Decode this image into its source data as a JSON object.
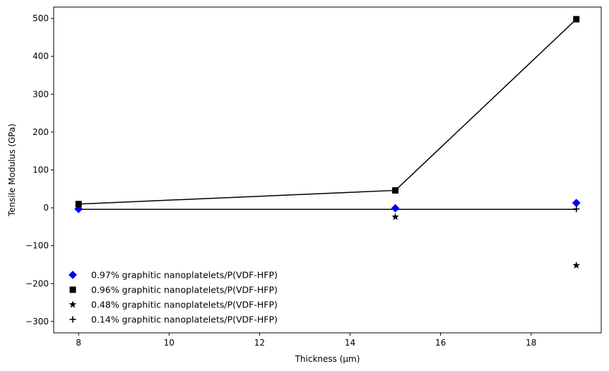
{
  "chart_data": {
    "type": "scatter",
    "xlabel": "Thickness (µm)",
    "ylabel": "Tensile Modulus (GPa)",
    "xlim": [
      7.45,
      19.55
    ],
    "ylim": [
      -330,
      530
    ],
    "xticks": [
      8,
      10,
      12,
      14,
      16,
      18
    ],
    "yticks": [
      -300,
      -200,
      -100,
      0,
      100,
      200,
      300,
      400,
      500
    ],
    "grid": false,
    "legend_position": "lower-left",
    "series": [
      {
        "name": "0.97% graphitic nanoplatelets/P(VDF-HFP)",
        "marker": "diamond",
        "color": "#0000ee",
        "points": [
          [
            8,
            -3
          ],
          [
            15,
            -1
          ],
          [
            19,
            13
          ]
        ]
      },
      {
        "name": "0.96% graphitic nanoplatelets/P(VDF-HFP)",
        "marker": "square",
        "color": "#000000",
        "points": [
          [
            8,
            10
          ],
          [
            15,
            46
          ],
          [
            19,
            498
          ]
        ]
      },
      {
        "name": "0.48% graphitic nanoplatelets/P(VDF-HFP)",
        "marker": "star",
        "color": "#000000",
        "points": [
          [
            15,
            -24
          ],
          [
            19,
            -152
          ]
        ]
      },
      {
        "name": "0.14% graphitic nanoplatelets/P(VDF-HFP)",
        "marker": "plus",
        "color": "#000000",
        "points": [
          [
            19,
            -3
          ]
        ]
      }
    ],
    "lines": [
      {
        "color": "#000000",
        "points": [
          [
            8,
            10
          ],
          [
            15,
            46
          ],
          [
            19,
            498
          ]
        ]
      },
      {
        "color": "#000000",
        "points": [
          [
            8,
            -4
          ],
          [
            15,
            -4
          ],
          [
            19,
            -4
          ]
        ]
      }
    ]
  }
}
